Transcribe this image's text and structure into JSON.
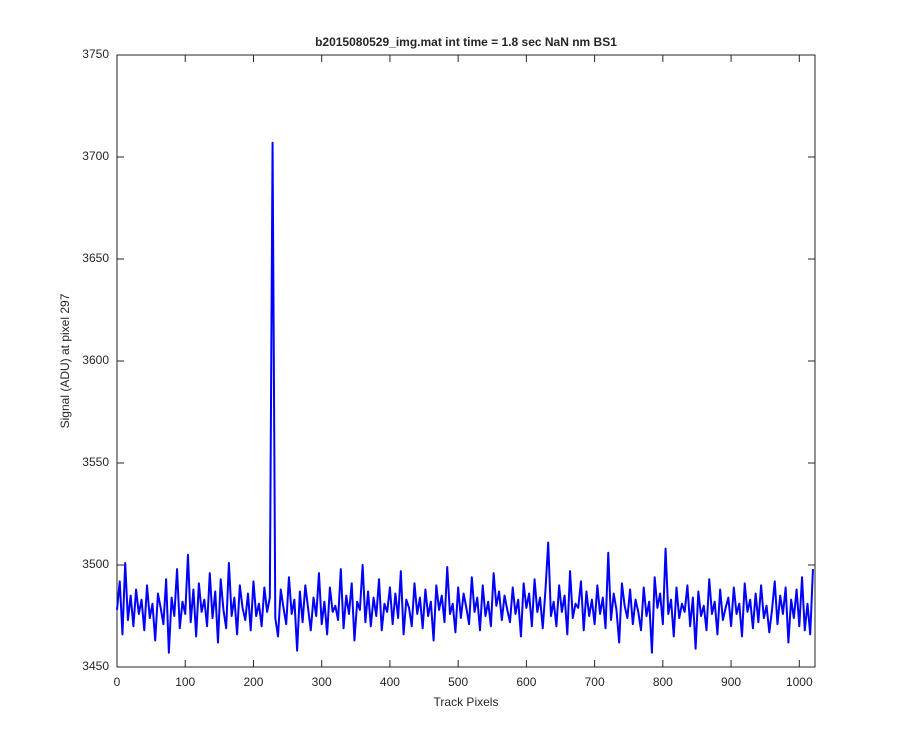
{
  "chart_data": {
    "type": "line",
    "title": "b2015080529_img.mat int time = 1.8 sec  NaN nm BS1",
    "xlabel": "Track Pixels",
    "ylabel": "Signal (ADU) at pixel 297",
    "xlim": [
      0,
      1023
    ],
    "xticks": [
      0,
      100,
      200,
      300,
      400,
      500,
      600,
      700,
      800,
      900,
      1000
    ],
    "ylim": [
      3450,
      3750
    ],
    "yticks": [
      3450,
      3500,
      3550,
      3600,
      3650,
      3700,
      3750
    ],
    "grid": false,
    "x": [
      0,
      4,
      8,
      12,
      16,
      20,
      24,
      28,
      32,
      36,
      40,
      44,
      48,
      52,
      56,
      60,
      64,
      68,
      72,
      76,
      80,
      84,
      88,
      92,
      96,
      100,
      104,
      108,
      112,
      116,
      120,
      124,
      128,
      132,
      136,
      140,
      144,
      148,
      152,
      156,
      160,
      164,
      168,
      172,
      176,
      180,
      184,
      188,
      192,
      196,
      200,
      204,
      208,
      212,
      216,
      220,
      224,
      228,
      232,
      236,
      240,
      244,
      248,
      252,
      256,
      260,
      264,
      268,
      272,
      276,
      280,
      284,
      288,
      292,
      296,
      300,
      304,
      308,
      312,
      316,
      320,
      324,
      328,
      332,
      336,
      340,
      344,
      348,
      352,
      356,
      360,
      364,
      368,
      372,
      376,
      380,
      384,
      388,
      392,
      396,
      400,
      404,
      408,
      412,
      416,
      420,
      424,
      428,
      432,
      436,
      440,
      444,
      448,
      452,
      456,
      460,
      464,
      468,
      472,
      476,
      480,
      484,
      488,
      492,
      496,
      500,
      504,
      508,
      512,
      516,
      520,
      524,
      528,
      532,
      536,
      540,
      544,
      548,
      552,
      556,
      560,
      564,
      568,
      572,
      576,
      580,
      584,
      588,
      592,
      596,
      600,
      604,
      608,
      612,
      616,
      620,
      624,
      628,
      632,
      636,
      640,
      644,
      648,
      652,
      656,
      660,
      664,
      668,
      672,
      676,
      680,
      684,
      688,
      692,
      696,
      700,
      704,
      708,
      712,
      716,
      720,
      724,
      728,
      732,
      736,
      740,
      744,
      748,
      752,
      756,
      760,
      764,
      768,
      772,
      776,
      780,
      784,
      788,
      792,
      796,
      800,
      804,
      808,
      812,
      816,
      820,
      824,
      828,
      832,
      836,
      840,
      844,
      848,
      852,
      856,
      860,
      864,
      868,
      872,
      876,
      880,
      884,
      888,
      892,
      896,
      900,
      904,
      908,
      912,
      916,
      920,
      924,
      928,
      932,
      936,
      940,
      944,
      948,
      952,
      956,
      960,
      964,
      968,
      972,
      976,
      980,
      984,
      988,
      992,
      996,
      1000,
      1004,
      1008,
      1012,
      1016,
      1020
    ],
    "series": [
      {
        "name": "signal",
        "color": "#0000ff",
        "values": [
          3478,
          3492,
          3466,
          3501,
          3473,
          3485,
          3470,
          3488,
          3476,
          3483,
          3468,
          3490,
          3474,
          3481,
          3463,
          3486,
          3479,
          3471,
          3493,
          3457,
          3484,
          3475,
          3498,
          3469,
          3482,
          3476,
          3505,
          3472,
          3488,
          3465,
          3491,
          3477,
          3483,
          3470,
          3496,
          3474,
          3487,
          3462,
          3493,
          3478,
          3469,
          3501,
          3475,
          3484,
          3466,
          3490,
          3479,
          3473,
          3486,
          3468,
          3492,
          3475,
          3481,
          3470,
          3489,
          3477,
          3484,
          3707,
          3474,
          3465,
          3488,
          3479,
          3471,
          3494,
          3476,
          3483,
          3458,
          3487,
          3472,
          3490,
          3479,
          3468,
          3484,
          3475,
          3496,
          3471,
          3482,
          3466,
          3489,
          3477,
          3480,
          3473,
          3498,
          3469,
          3485,
          3476,
          3491,
          3463,
          3482,
          3478,
          3500,
          3472,
          3487,
          3470,
          3484,
          3475,
          3493,
          3468,
          3481,
          3477,
          3489,
          3471,
          3486,
          3474,
          3497,
          3466,
          3483,
          3479,
          3470,
          3491,
          3476,
          3484,
          3469,
          3488,
          3475,
          3482,
          3463,
          3490,
          3478,
          3485,
          3472,
          3499,
          3476,
          3481,
          3467,
          3489,
          3474,
          3486,
          3479,
          3471,
          3494,
          3477,
          3484,
          3468,
          3490,
          3475,
          3482,
          3470,
          3496,
          3480,
          3487,
          3473,
          3485,
          3478,
          3472,
          3489,
          3476,
          3483,
          3465,
          3491,
          3479,
          3486,
          3470,
          3493,
          3477,
          3484,
          3469,
          3488,
          3511,
          3475,
          3482,
          3470,
          3490,
          3477,
          3485,
          3466,
          3497,
          3474,
          3481,
          3479,
          3492,
          3468,
          3487,
          3475,
          3483,
          3471,
          3490,
          3476,
          3484,
          3469,
          3506,
          3473,
          3486,
          3478,
          3462,
          3491,
          3480,
          3474,
          3488,
          3471,
          3483,
          3477,
          3468,
          3489,
          3475,
          3482,
          3457,
          3494,
          3479,
          3486,
          3471,
          3508,
          3476,
          3483,
          3465,
          3489,
          3474,
          3481,
          3477,
          3490,
          3470,
          3484,
          3459,
          3487,
          3475,
          3480,
          3468,
          3493,
          3476,
          3482,
          3466,
          3488,
          3473,
          3479,
          3484,
          3470,
          3489,
          3476,
          3481,
          3465,
          3491,
          3477,
          3483,
          3469,
          3486,
          3472,
          3490,
          3474,
          3480,
          3467,
          3478,
          3492,
          3471,
          3485,
          3476,
          3489,
          3462,
          3483,
          3474,
          3488,
          3470,
          3494,
          3468,
          3481,
          3466,
          3498
        ]
      }
    ]
  }
}
